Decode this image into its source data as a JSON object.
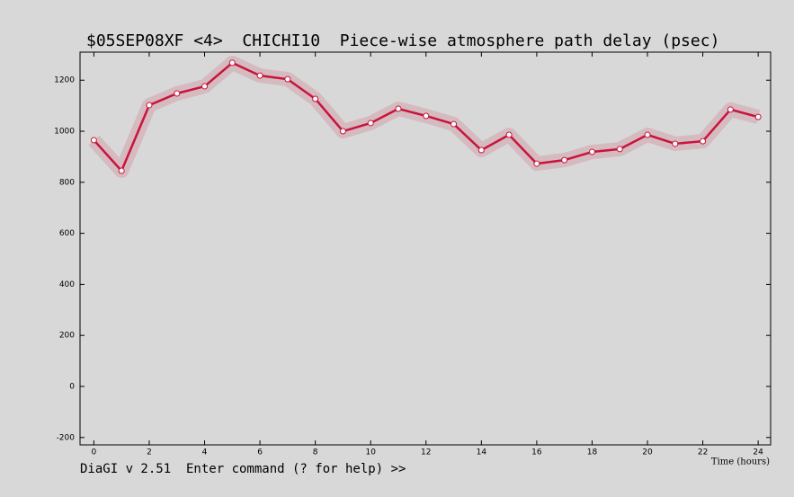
{
  "chart_data": {
    "type": "line",
    "title": "$05SEP08XF <4>  CHICHI10  Piece-wise atmosphere path delay (psec)",
    "x_label": "Time (hours)",
    "x": [
      0,
      1,
      2,
      3,
      4,
      5,
      6,
      7,
      8,
      9,
      10,
      11,
      12,
      13,
      14,
      15,
      16,
      17,
      18,
      19,
      20,
      21,
      22,
      23,
      24
    ],
    "series": [
      {
        "color": "#c8143c",
        "values": [
          965,
          845,
          1102,
          1148,
          1176,
          1268,
          1218,
          1204,
          1127,
          1000,
          1032,
          1088,
          1060,
          1028,
          926,
          986,
          873,
          887,
          919,
          930,
          986,
          951,
          961,
          1085,
          1056
        ]
      }
    ],
    "xlim": [
      -0.5,
      24.45
    ],
    "ylim": [
      -229,
      1310
    ],
    "xticks": [
      0,
      2,
      4,
      6,
      8,
      10,
      12,
      14,
      16,
      18,
      20,
      22,
      24
    ],
    "yticks": [
      -200,
      0,
      200,
      400,
      600,
      800,
      1000,
      1200
    ]
  },
  "status_bar": {
    "prompt": "DiaGI v 2.51  Enter command (? for help) >>"
  }
}
